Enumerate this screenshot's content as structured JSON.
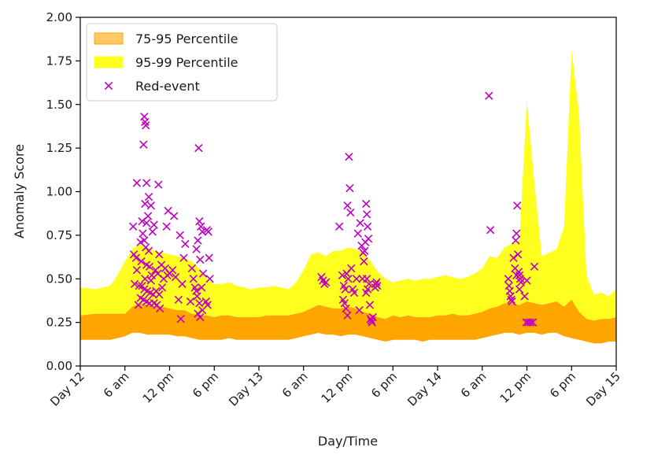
{
  "chart_data": {
    "type": "area",
    "title": "",
    "xlabel": "Day/Time",
    "ylabel": "Anomaly Score",
    "x_unit": "hours since Day 12 00:00",
    "xlim": [
      0,
      72
    ],
    "ylim": [
      0,
      2.0
    ],
    "grid": false,
    "legend_position": "top-left",
    "y_ticks": [
      {
        "value": 0.0,
        "label": "0.00"
      },
      {
        "value": 0.25,
        "label": "0.25"
      },
      {
        "value": 0.5,
        "label": "0.50"
      },
      {
        "value": 0.75,
        "label": "0.75"
      },
      {
        "value": 1.0,
        "label": "1.00"
      },
      {
        "value": 1.25,
        "label": "1.25"
      },
      {
        "value": 1.5,
        "label": "1.50"
      },
      {
        "value": 1.75,
        "label": "1.75"
      },
      {
        "value": 2.0,
        "label": "2.00"
      }
    ],
    "x_ticks": [
      {
        "value": 0,
        "label": "Day 12"
      },
      {
        "value": 6,
        "label": "6 am"
      },
      {
        "value": 12,
        "label": "12 pm"
      },
      {
        "value": 18,
        "label": "6 pm"
      },
      {
        "value": 24,
        "label": "Day 13"
      },
      {
        "value": 30,
        "label": "6 am"
      },
      {
        "value": 36,
        "label": "12 pm"
      },
      {
        "value": 42,
        "label": "6 pm"
      },
      {
        "value": 48,
        "label": "Day 14"
      },
      {
        "value": 54,
        "label": "6 am"
      },
      {
        "value": 60,
        "label": "12 pm"
      },
      {
        "value": 66,
        "label": "6 pm"
      },
      {
        "value": 72,
        "label": "Day 15"
      }
    ],
    "series": [
      {
        "name": "95-99 Percentile",
        "kind": "band",
        "color": "#ffff1f",
        "x": [
          0,
          2,
          4,
          5,
          6,
          7,
          8,
          9,
          10,
          11,
          12,
          13,
          14,
          15,
          16,
          17,
          18,
          19,
          20,
          21,
          22,
          23,
          24,
          25,
          26,
          27,
          28,
          29,
          30,
          31,
          32,
          33,
          34,
          35,
          36,
          37,
          38,
          39,
          40,
          41,
          42,
          43,
          44,
          45,
          46,
          47,
          48,
          49,
          50,
          51,
          52,
          53,
          54,
          55,
          56,
          57,
          58,
          59,
          60,
          61,
          62,
          63,
          64,
          65,
          66,
          67,
          68,
          69,
          70,
          71,
          72
        ],
        "upper": [
          0.45,
          0.44,
          0.46,
          0.52,
          0.6,
          0.67,
          0.7,
          0.68,
          0.66,
          0.65,
          0.64,
          0.63,
          0.62,
          0.6,
          0.56,
          0.5,
          0.47,
          0.47,
          0.48,
          0.46,
          0.45,
          0.44,
          0.45,
          0.45,
          0.46,
          0.45,
          0.44,
          0.48,
          0.55,
          0.64,
          0.65,
          0.63,
          0.66,
          0.66,
          0.68,
          0.67,
          0.65,
          0.6,
          0.54,
          0.5,
          0.48,
          0.49,
          0.5,
          0.49,
          0.5,
          0.5,
          0.51,
          0.52,
          0.51,
          0.5,
          0.51,
          0.53,
          0.56,
          0.63,
          0.62,
          0.68,
          0.7,
          0.72,
          1.52,
          1.05,
          0.63,
          0.65,
          0.67,
          0.8,
          1.81,
          1.45,
          0.52,
          0.41,
          0.42,
          0.4,
          0.44
        ],
        "lower": [
          0.29,
          0.3,
          0.3,
          0.3,
          0.3,
          0.34,
          0.36,
          0.35,
          0.34,
          0.34,
          0.33,
          0.32,
          0.32,
          0.3,
          0.29,
          0.29,
          0.28,
          0.29,
          0.29,
          0.28,
          0.28,
          0.28,
          0.28,
          0.29,
          0.29,
          0.29,
          0.29,
          0.3,
          0.31,
          0.33,
          0.35,
          0.34,
          0.33,
          0.33,
          0.34,
          0.33,
          0.31,
          0.3,
          0.28,
          0.27,
          0.29,
          0.28,
          0.29,
          0.28,
          0.28,
          0.28,
          0.29,
          0.29,
          0.3,
          0.29,
          0.29,
          0.3,
          0.31,
          0.33,
          0.34,
          0.36,
          0.36,
          0.35,
          0.37,
          0.36,
          0.35,
          0.36,
          0.37,
          0.34,
          0.38,
          0.31,
          0.27,
          0.26,
          0.27,
          0.27,
          0.28
        ]
      },
      {
        "name": "75-95 Percentile",
        "kind": "band",
        "color": "#ffa500",
        "x": [
          0,
          2,
          4,
          5,
          6,
          7,
          8,
          9,
          10,
          11,
          12,
          13,
          14,
          15,
          16,
          17,
          18,
          19,
          20,
          21,
          22,
          23,
          24,
          25,
          26,
          27,
          28,
          29,
          30,
          31,
          32,
          33,
          34,
          35,
          36,
          37,
          38,
          39,
          40,
          41,
          42,
          43,
          44,
          45,
          46,
          47,
          48,
          49,
          50,
          51,
          52,
          53,
          54,
          55,
          56,
          57,
          58,
          59,
          60,
          61,
          62,
          63,
          64,
          65,
          66,
          67,
          68,
          69,
          70,
          71,
          72
        ],
        "upper": [
          0.29,
          0.3,
          0.3,
          0.3,
          0.3,
          0.34,
          0.36,
          0.35,
          0.34,
          0.34,
          0.33,
          0.32,
          0.32,
          0.3,
          0.29,
          0.29,
          0.28,
          0.29,
          0.29,
          0.28,
          0.28,
          0.28,
          0.28,
          0.29,
          0.29,
          0.29,
          0.29,
          0.3,
          0.31,
          0.33,
          0.35,
          0.34,
          0.33,
          0.33,
          0.34,
          0.33,
          0.31,
          0.3,
          0.28,
          0.27,
          0.29,
          0.28,
          0.29,
          0.28,
          0.28,
          0.28,
          0.29,
          0.29,
          0.3,
          0.29,
          0.29,
          0.3,
          0.31,
          0.33,
          0.34,
          0.36,
          0.36,
          0.35,
          0.37,
          0.36,
          0.35,
          0.36,
          0.37,
          0.34,
          0.38,
          0.31,
          0.27,
          0.26,
          0.27,
          0.27,
          0.28
        ],
        "lower": [
          0.15,
          0.15,
          0.15,
          0.16,
          0.17,
          0.19,
          0.19,
          0.18,
          0.18,
          0.18,
          0.18,
          0.17,
          0.17,
          0.16,
          0.15,
          0.15,
          0.15,
          0.15,
          0.16,
          0.15,
          0.15,
          0.15,
          0.15,
          0.15,
          0.15,
          0.15,
          0.15,
          0.16,
          0.17,
          0.18,
          0.19,
          0.18,
          0.18,
          0.17,
          0.18,
          0.18,
          0.17,
          0.16,
          0.15,
          0.14,
          0.15,
          0.15,
          0.15,
          0.15,
          0.14,
          0.15,
          0.15,
          0.15,
          0.15,
          0.15,
          0.15,
          0.15,
          0.16,
          0.17,
          0.18,
          0.19,
          0.19,
          0.18,
          0.19,
          0.19,
          0.18,
          0.19,
          0.19,
          0.17,
          0.16,
          0.15,
          0.14,
          0.13,
          0.13,
          0.14,
          0.14
        ]
      },
      {
        "name": "Red-event",
        "kind": "scatter",
        "marker": "x",
        "color": "#bf00bf",
        "points": [
          [
            8.6,
            1.43
          ],
          [
            8.7,
            1.4
          ],
          [
            8.5,
            1.27
          ],
          [
            8.8,
            1.38
          ],
          [
            7.6,
            1.05
          ],
          [
            8.9,
            1.05
          ],
          [
            10.5,
            1.04
          ],
          [
            9.2,
            0.97
          ],
          [
            8.7,
            0.93
          ],
          [
            9.5,
            0.92
          ],
          [
            9.1,
            0.86
          ],
          [
            11.8,
            0.89
          ],
          [
            8.3,
            0.83
          ],
          [
            8.9,
            0.82
          ],
          [
            9.9,
            0.81
          ],
          [
            11.6,
            0.8
          ],
          [
            7.1,
            0.8
          ],
          [
            9.7,
            0.77
          ],
          [
            8.4,
            0.76
          ],
          [
            8.1,
            0.71
          ],
          [
            8.6,
            0.72
          ],
          [
            7.2,
            0.64
          ],
          [
            7.5,
            0.62
          ],
          [
            8.2,
            0.6
          ],
          [
            8.9,
            0.58
          ],
          [
            9.3,
            0.57
          ],
          [
            10.1,
            0.55
          ],
          [
            10.4,
            0.53
          ],
          [
            9.6,
            0.52
          ],
          [
            8.7,
            0.5
          ],
          [
            7.3,
            0.47
          ],
          [
            7.9,
            0.46
          ],
          [
            8.3,
            0.46
          ],
          [
            8.6,
            0.44
          ],
          [
            9.0,
            0.43
          ],
          [
            9.4,
            0.42
          ],
          [
            9.8,
            0.41
          ],
          [
            10.2,
            0.43
          ],
          [
            10.6,
            0.41
          ],
          [
            8.1,
            0.39
          ],
          [
            8.5,
            0.38
          ],
          [
            8.9,
            0.37
          ],
          [
            9.3,
            0.36
          ],
          [
            7.8,
            0.35
          ],
          [
            9.9,
            0.36
          ],
          [
            10.3,
            0.35
          ],
          [
            10.7,
            0.33
          ],
          [
            11.0,
            0.45
          ],
          [
            11.2,
            0.5
          ],
          [
            10.9,
            0.58
          ],
          [
            10.6,
            0.64
          ],
          [
            9.2,
            0.66
          ],
          [
            8.8,
            0.68
          ],
          [
            11.4,
            0.56
          ],
          [
            11.7,
            0.52
          ],
          [
            7.6,
            0.55
          ],
          [
            9.5,
            0.49
          ],
          [
            12.0,
            0.53
          ],
          [
            12.4,
            0.55
          ],
          [
            12.8,
            0.51
          ],
          [
            13.2,
            0.38
          ],
          [
            13.5,
            0.27
          ],
          [
            13.7,
            0.47
          ],
          [
            13.9,
            0.62
          ],
          [
            14.1,
            0.7
          ],
          [
            12.6,
            0.86
          ],
          [
            13.4,
            0.75
          ],
          [
            14.8,
            0.37
          ],
          [
            15.0,
            0.56
          ],
          [
            15.2,
            0.5
          ],
          [
            15.4,
            0.45
          ],
          [
            15.6,
            0.43
          ],
          [
            15.9,
            1.25
          ],
          [
            16.0,
            0.83
          ],
          [
            16.2,
            0.8
          ],
          [
            16.4,
            0.77
          ],
          [
            15.8,
            0.72
          ],
          [
            15.6,
            0.67
          ],
          [
            16.1,
            0.61
          ],
          [
            16.5,
            0.53
          ],
          [
            16.3,
            0.45
          ],
          [
            15.7,
            0.4
          ],
          [
            16.0,
            0.36
          ],
          [
            16.4,
            0.32
          ],
          [
            15.8,
            0.3
          ],
          [
            16.1,
            0.28
          ],
          [
            17.0,
            0.78
          ],
          [
            17.2,
            0.77
          ],
          [
            17.4,
            0.5
          ],
          [
            16.9,
            0.37
          ],
          [
            17.1,
            0.35
          ],
          [
            17.3,
            0.62
          ],
          [
            32.4,
            0.51
          ],
          [
            32.6,
            0.49
          ],
          [
            32.8,
            0.47
          ],
          [
            33.0,
            0.48
          ],
          [
            34.8,
            0.8
          ],
          [
            35.2,
            0.52
          ],
          [
            35.4,
            0.46
          ],
          [
            35.6,
            0.44
          ],
          [
            35.9,
            0.92
          ],
          [
            36.1,
            1.2
          ],
          [
            36.2,
            1.02
          ],
          [
            36.3,
            0.88
          ],
          [
            35.8,
            0.53
          ],
          [
            36.0,
            0.5
          ],
          [
            36.4,
            0.56
          ],
          [
            36.6,
            0.44
          ],
          [
            36.8,
            0.42
          ],
          [
            37.1,
            0.5
          ],
          [
            35.3,
            0.38
          ],
          [
            35.5,
            0.36
          ],
          [
            35.7,
            0.33
          ],
          [
            35.9,
            0.29
          ],
          [
            37.3,
            0.76
          ],
          [
            37.6,
            0.82
          ],
          [
            37.8,
            0.69
          ],
          [
            38.0,
            0.65
          ],
          [
            38.2,
            0.66
          ],
          [
            38.4,
            0.93
          ],
          [
            38.5,
            0.87
          ],
          [
            38.6,
            0.8
          ],
          [
            38.7,
            0.73
          ],
          [
            38.3,
            0.71
          ],
          [
            38.1,
            0.6
          ],
          [
            37.9,
            0.5
          ],
          [
            38.5,
            0.5
          ],
          [
            38.8,
            0.47
          ],
          [
            38.6,
            0.44
          ],
          [
            38.4,
            0.42
          ],
          [
            38.9,
            0.35
          ],
          [
            39.0,
            0.27
          ],
          [
            39.1,
            0.26
          ],
          [
            39.2,
            0.25
          ],
          [
            39.3,
            0.28
          ],
          [
            37.5,
            0.32
          ],
          [
            39.7,
            0.47
          ],
          [
            39.9,
            0.46
          ],
          [
            39.6,
            0.45
          ],
          [
            39.8,
            0.48
          ],
          [
            54.9,
            1.55
          ],
          [
            55.1,
            0.78
          ],
          [
            57.6,
            0.46
          ],
          [
            57.7,
            0.43
          ],
          [
            57.8,
            0.4
          ],
          [
            57.9,
            0.38
          ],
          [
            58.0,
            0.37
          ],
          [
            58.2,
            0.62
          ],
          [
            58.4,
            0.56
          ],
          [
            58.5,
            0.72
          ],
          [
            58.6,
            0.76
          ],
          [
            58.7,
            0.92
          ],
          [
            58.8,
            0.64
          ],
          [
            58.9,
            0.54
          ],
          [
            59.0,
            0.52
          ],
          [
            59.1,
            0.5
          ],
          [
            59.2,
            0.48
          ],
          [
            59.0,
            0.44
          ],
          [
            57.5,
            0.5
          ],
          [
            58.6,
            0.52
          ],
          [
            60.0,
            0.49
          ],
          [
            59.7,
            0.4
          ],
          [
            59.9,
            0.25
          ],
          [
            60.2,
            0.25
          ],
          [
            60.5,
            0.25
          ],
          [
            60.8,
            0.25
          ],
          [
            61.0,
            0.57
          ]
        ]
      }
    ],
    "legend": [
      {
        "label": "75-95 Percentile",
        "kind": "patch",
        "fill": "#ffc966",
        "stroke": "#ffa500"
      },
      {
        "label": "95-99 Percentile",
        "kind": "patch",
        "fill": "#ffff1f",
        "stroke": "#ffff1f"
      },
      {
        "label": "Red-event",
        "kind": "marker",
        "fill": "#bf00bf",
        "stroke": "#bf00bf"
      }
    ]
  }
}
